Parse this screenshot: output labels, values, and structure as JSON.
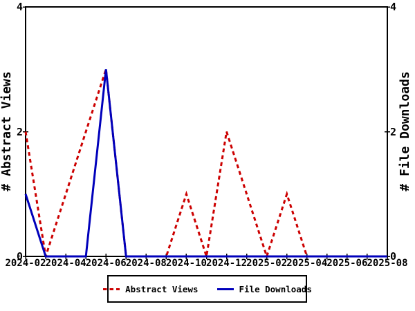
{
  "colors": {
    "background": "#ffffff",
    "axis": "#000000",
    "abstract_views": "#cc0000",
    "file_downloads": "#0000bb"
  },
  "chart_data": {
    "type": "line",
    "x": [
      "2024-02",
      "2024-03",
      "2024-04",
      "2024-05",
      "2024-06",
      "2024-07",
      "2024-08",
      "2024-09",
      "2024-10",
      "2024-11",
      "2024-12",
      "2025-01",
      "2025-02",
      "2025-03",
      "2025-04",
      "2025-05",
      "2025-06",
      "2025-07",
      "2025-08"
    ],
    "x_tick_labels": [
      "2024-02",
      "2024-04",
      "2024-06",
      "2024-08",
      "2024-10",
      "2024-12",
      "2025-02",
      "2025-04",
      "2025-06",
      "2025-08"
    ],
    "y_ticks": [
      0,
      2,
      4
    ],
    "ylim": [
      0,
      4
    ],
    "ylabel_left": "# Abstract Views",
    "ylabel_right": "# File Downloads",
    "title": "",
    "grid": false,
    "legend_position": "bottom-center",
    "series": [
      {
        "name": "Abstract Views",
        "axis": "left",
        "style": "dashed",
        "color": "#cc0000",
        "values": [
          2,
          0,
          1,
          2,
          3,
          0,
          0,
          0,
          1,
          0,
          2,
          1,
          0,
          1,
          0,
          0,
          0,
          0,
          0
        ]
      },
      {
        "name": "File Downloads",
        "axis": "right",
        "style": "solid",
        "color": "#0000bb",
        "values": [
          1,
          0,
          0,
          0,
          3,
          0,
          0,
          0,
          0,
          0,
          0,
          0,
          0,
          0,
          0,
          0,
          0,
          0,
          0
        ]
      }
    ]
  }
}
